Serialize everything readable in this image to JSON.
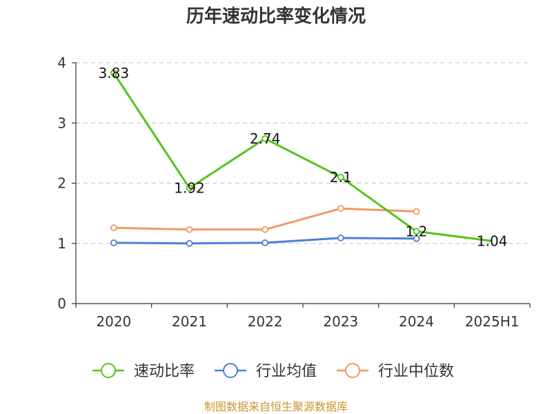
{
  "chart_data": {
    "type": "line",
    "title": "历年速动比率变化情况",
    "categories": [
      "2020",
      "2021",
      "2022",
      "2023",
      "2024",
      "2025H1"
    ],
    "ylim": [
      0,
      4
    ],
    "yticks": [
      0,
      1,
      2,
      3,
      4
    ],
    "grid": "horizontal dashed",
    "legend_position": "bottom",
    "series": [
      {
        "name": "速动比率",
        "color": "#52c41a",
        "values": [
          3.83,
          1.92,
          2.74,
          2.1,
          1.2,
          1.04
        ],
        "labels": [
          "3.83",
          "1.92",
          "2.74",
          "2.1",
          "1.2",
          "1.04"
        ]
      },
      {
        "name": "行业均值",
        "color": "#4a7fd6",
        "values": [
          1.01,
          1.0,
          1.01,
          1.09,
          1.08,
          null
        ]
      },
      {
        "name": "行业中位数",
        "color": "#f59762",
        "values": [
          1.26,
          1.23,
          1.23,
          1.58,
          1.53,
          null
        ]
      }
    ]
  },
  "footer": {
    "source": "制图数据来自恒生聚源数据库",
    "color": "#c8962d"
  }
}
